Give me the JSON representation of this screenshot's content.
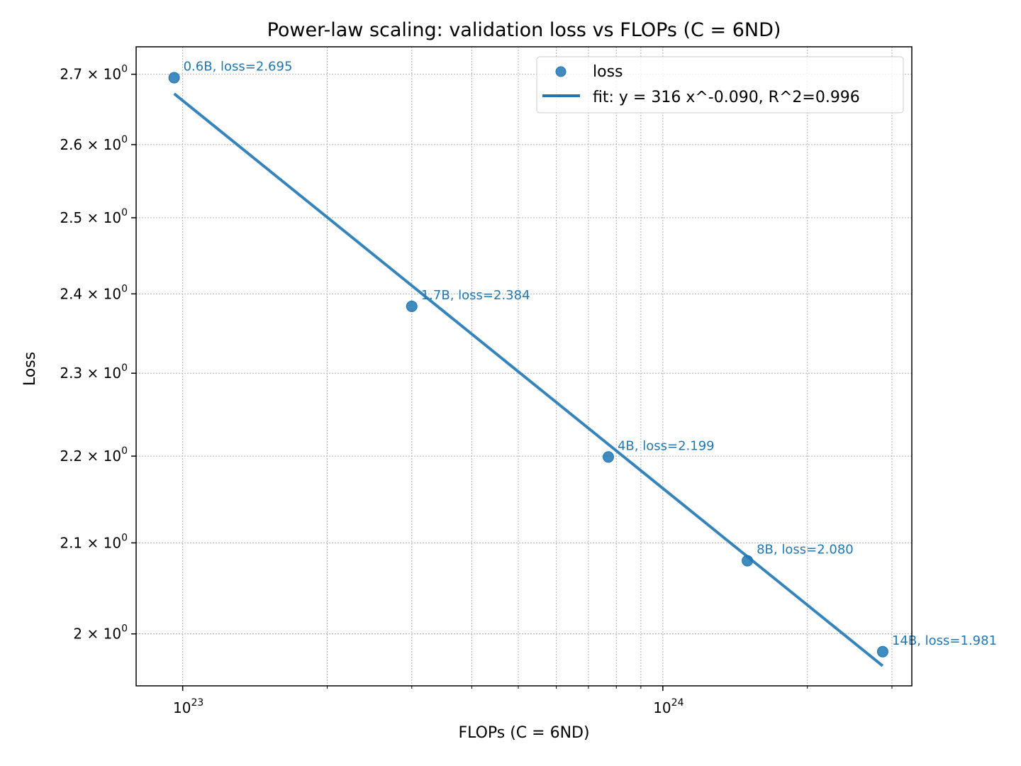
{
  "chart_data": {
    "type": "scatter",
    "title": "Power-law scaling: validation loss vs FLOPs (C = 6ND)",
    "xlabel": "FLOPs (C = 6ND)",
    "ylabel": "Loss",
    "xscale": "log",
    "yscale": "log",
    "xlim": [
      8e+22,
      3.3e+24
    ],
    "ylim": [
      1.945,
      2.74
    ],
    "grid": true,
    "legend_position": "upper right",
    "x_major_ticks": [
      {
        "value": 1e+23,
        "base": "10",
        "exp": "23"
      },
      {
        "value": 1e+24,
        "base": "10",
        "exp": "24"
      }
    ],
    "x_minor_ticks": [
      2e+23,
      3e+23,
      4e+23,
      5e+23,
      6e+23,
      7e+23,
      8e+23,
      9e+23,
      2e+24,
      3e+24
    ],
    "y_ticks": [
      {
        "value": 2.0,
        "mantissa": "2",
        "exp": "0"
      },
      {
        "value": 2.1,
        "mantissa": "2.1",
        "exp": "0"
      },
      {
        "value": 2.2,
        "mantissa": "2.2",
        "exp": "0"
      },
      {
        "value": 2.3,
        "mantissa": "2.3",
        "exp": "0"
      },
      {
        "value": 2.4,
        "mantissa": "2.4",
        "exp": "0"
      },
      {
        "value": 2.5,
        "mantissa": "2.5",
        "exp": "0"
      },
      {
        "value": 2.6,
        "mantissa": "2.6",
        "exp": "0"
      },
      {
        "value": 2.7,
        "mantissa": "2.7",
        "exp": "0"
      }
    ],
    "series": [
      {
        "name": "loss",
        "kind": "scatter",
        "color": "#1f77b4",
        "points": [
          {
            "x": 9.6e+22,
            "y": 2.695,
            "label": "0.6B, loss=2.695"
          },
          {
            "x": 3e+23,
            "y": 2.384,
            "label": "1.7B, loss=2.384"
          },
          {
            "x": 7.7e+23,
            "y": 2.199,
            "label": "4B, loss=2.199"
          },
          {
            "x": 1.5e+24,
            "y": 2.08,
            "label": "8B, loss=2.080"
          },
          {
            "x": 2.87e+24,
            "y": 1.981,
            "label": "14B, loss=1.981"
          }
        ]
      },
      {
        "name": "fit: y = 316 x^-0.090, R^2=0.996",
        "kind": "line",
        "color": "#1f77b4",
        "points": [
          {
            "x": 9.6e+22,
            "y": 2.672
          },
          {
            "x": 2.87e+24,
            "y": 1.966
          }
        ]
      }
    ]
  }
}
